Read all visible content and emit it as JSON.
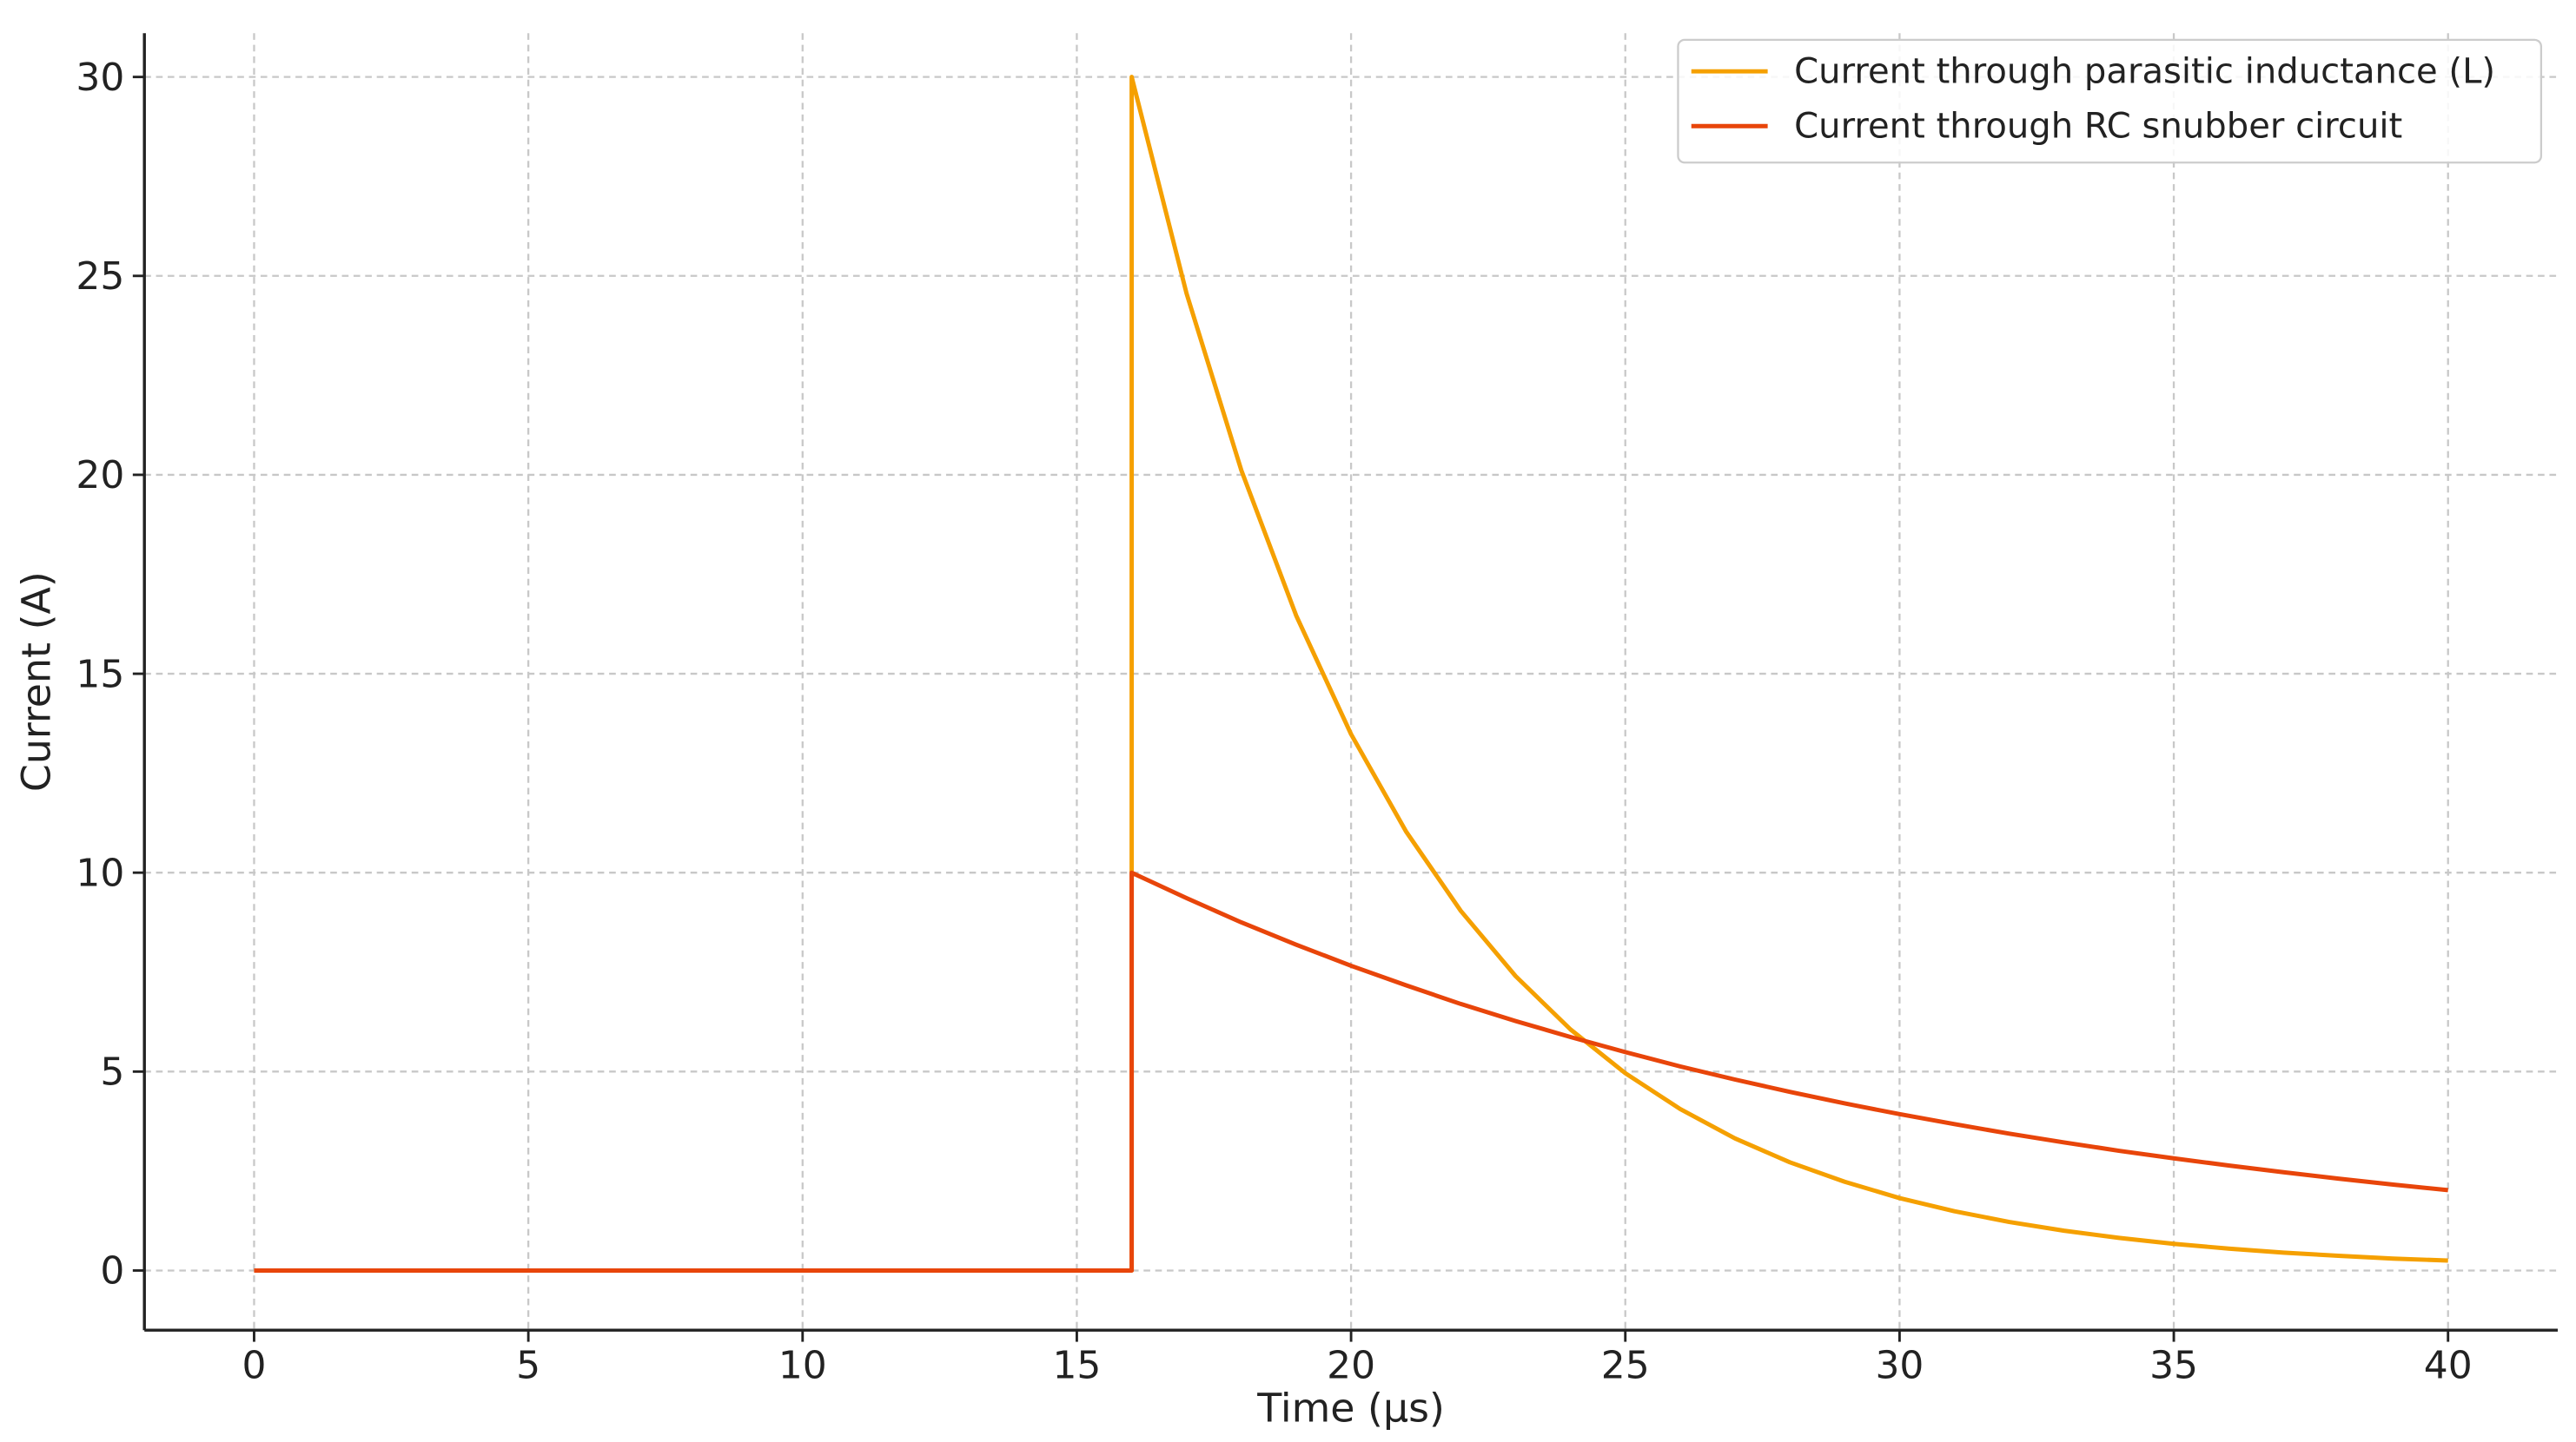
{
  "chart_data": {
    "type": "line",
    "xlabel": "Time (µs)",
    "ylabel": "Current (A)",
    "x": [
      0,
      16,
      16,
      17,
      18,
      19,
      20,
      21,
      22,
      23,
      24,
      25,
      26,
      27,
      28,
      29,
      30,
      31,
      32,
      33,
      34,
      35,
      36,
      37,
      38,
      39,
      40
    ],
    "series": [
      {
        "name": "Current through parasitic inductance (L)",
        "color": "#f5a000",
        "values": [
          0,
          0,
          30,
          24.56,
          20.11,
          16.46,
          13.48,
          11.04,
          9.04,
          7.4,
          6.06,
          4.96,
          4.06,
          3.32,
          2.72,
          2.23,
          1.82,
          1.49,
          1.22,
          1.0,
          0.82,
          0.67,
          0.55,
          0.45,
          0.37,
          0.3,
          0.25
        ]
      },
      {
        "name": "Current through RC snubber circuit",
        "color": "#e8450a",
        "values": [
          0,
          0,
          10,
          9.36,
          8.75,
          8.19,
          7.66,
          7.17,
          6.7,
          6.27,
          5.87,
          5.49,
          5.13,
          4.8,
          4.49,
          4.2,
          3.93,
          3.68,
          3.44,
          3.22,
          3.01,
          2.82,
          2.64,
          2.47,
          2.31,
          2.16,
          2.02
        ]
      }
    ],
    "xlim": [
      -2,
      42
    ],
    "ylim": [
      -1.5,
      31.1
    ],
    "xticks": [
      0,
      5,
      10,
      15,
      20,
      25,
      30,
      35,
      40
    ],
    "yticks": [
      0,
      5,
      10,
      15,
      20,
      25,
      30
    ],
    "grid": true,
    "legend": "upper right"
  }
}
